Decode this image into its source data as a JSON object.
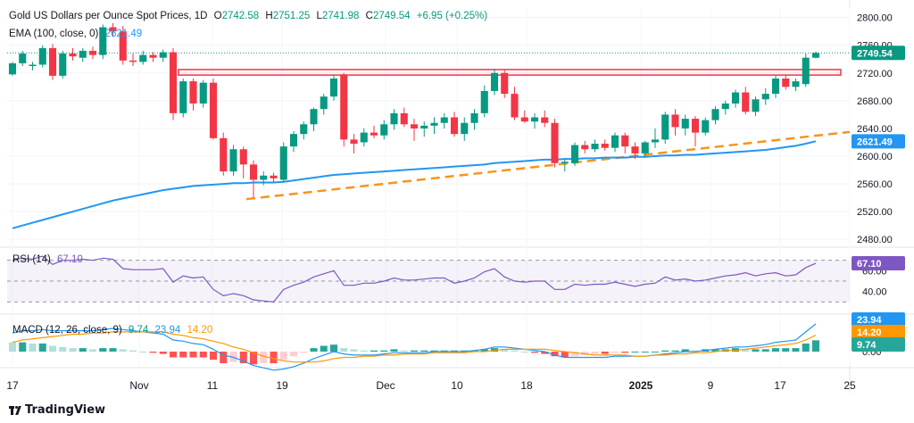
{
  "legend": {
    "title": "Gold US Dollars per Ounce Spot Prices, 1D",
    "open_label": "O",
    "open": "2742.58",
    "high_label": "H",
    "high": "2751.25",
    "low_label": "L",
    "low": "2741.98",
    "close_label": "C",
    "close": "2749.54",
    "change": "+6.95 (+0.25%)",
    "ema_label": "EMA (100, close, 0)",
    "ema_value": "2621.49",
    "rsi_label": "RSI (14)",
    "rsi_value": "67.10",
    "macd_label": "MACD (12, 26, close, 9)",
    "macd_hist": "9.74",
    "macd_line": "23.94",
    "macd_signal": "14.20"
  },
  "price_axis": {
    "ticks": [
      "2800.00",
      "2760.00",
      "2720.00",
      "2680.00",
      "2640.00",
      "2600.00",
      "2560.00",
      "2520.00",
      "2480.00"
    ],
    "last_price_badge": "2749.54",
    "ema_badge": "2621.49"
  },
  "rsi_axis": {
    "ticks": [
      "60.00",
      "40.00"
    ],
    "badge": "67.10"
  },
  "macd_axis": {
    "ticks": [
      "0.00"
    ],
    "badge_line": "23.94",
    "badge_signal": "14.20",
    "badge_hist": "9.74"
  },
  "time_axis": {
    "labels": [
      "17",
      "Nov",
      "11",
      "19",
      "Dec",
      "10",
      "18",
      "2025",
      "9",
      "17",
      "25"
    ]
  },
  "brand": {
    "name": "TradingView"
  },
  "colors": {
    "up": "#089981",
    "down": "#f23645",
    "ema": "#2196f3",
    "support": "#f7941d",
    "zone": "#f23645",
    "rsi": "#7e57c2",
    "macd": "#2196f3",
    "signal": "#ff9800"
  },
  "chart_data": {
    "type": "candlestick",
    "title": "Gold US Dollars per Ounce Spot Prices, 1D",
    "ylim": [
      2470,
      2815
    ],
    "candles": [
      [
        2718,
        2736,
        2716,
        2734
      ],
      [
        2734,
        2752,
        2730,
        2748
      ],
      [
        2730,
        2736,
        2724,
        2732
      ],
      [
        2732,
        2760,
        2728,
        2756
      ],
      [
        2756,
        2762,
        2710,
        2716
      ],
      [
        2716,
        2752,
        2712,
        2748
      ],
      [
        2748,
        2756,
        2738,
        2744
      ],
      [
        2742,
        2756,
        2736,
        2752
      ],
      [
        2752,
        2758,
        2740,
        2746
      ],
      [
        2746,
        2790,
        2740,
        2786
      ],
      [
        2786,
        2792,
        2772,
        2780
      ],
      [
        2780,
        2788,
        2732,
        2738
      ],
      [
        2738,
        2748,
        2730,
        2736
      ],
      [
        2736,
        2752,
        2732,
        2746
      ],
      [
        2746,
        2750,
        2736,
        2742
      ],
      [
        2742,
        2754,
        2736,
        2750
      ],
      [
        2750,
        2756,
        2652,
        2662
      ],
      [
        2662,
        2712,
        2656,
        2708
      ],
      [
        2708,
        2712,
        2666,
        2676
      ],
      [
        2676,
        2710,
        2670,
        2706
      ],
      [
        2706,
        2712,
        2624,
        2626
      ],
      [
        2626,
        2634,
        2572,
        2578
      ],
      [
        2578,
        2616,
        2572,
        2610
      ],
      [
        2610,
        2614,
        2568,
        2588
      ],
      [
        2588,
        2594,
        2540,
        2566
      ],
      [
        2566,
        2578,
        2558,
        2572
      ],
      [
        2572,
        2576,
        2562,
        2568
      ],
      [
        2566,
        2620,
        2562,
        2614
      ],
      [
        2614,
        2636,
        2606,
        2632
      ],
      [
        2632,
        2650,
        2624,
        2646
      ],
      [
        2646,
        2670,
        2636,
        2668
      ],
      [
        2668,
        2690,
        2660,
        2686
      ],
      [
        2686,
        2718,
        2680,
        2712
      ],
      [
        2718,
        2720,
        2614,
        2624
      ],
      [
        2624,
        2632,
        2604,
        2618
      ],
      [
        2620,
        2640,
        2614,
        2634
      ],
      [
        2634,
        2644,
        2626,
        2630
      ],
      [
        2630,
        2652,
        2624,
        2646
      ],
      [
        2646,
        2668,
        2638,
        2662
      ],
      [
        2662,
        2670,
        2642,
        2646
      ],
      [
        2646,
        2654,
        2622,
        2640
      ],
      [
        2640,
        2650,
        2628,
        2644
      ],
      [
        2644,
        2656,
        2632,
        2648
      ],
      [
        2648,
        2662,
        2640,
        2656
      ],
      [
        2656,
        2664,
        2628,
        2632
      ],
      [
        2632,
        2656,
        2622,
        2648
      ],
      [
        2648,
        2668,
        2638,
        2662
      ],
      [
        2662,
        2702,
        2656,
        2694
      ],
      [
        2694,
        2726,
        2688,
        2720
      ],
      [
        2720,
        2724,
        2684,
        2690
      ],
      [
        2690,
        2700,
        2652,
        2656
      ],
      [
        2656,
        2666,
        2648,
        2650
      ],
      [
        2650,
        2662,
        2640,
        2656
      ],
      [
        2656,
        2666,
        2642,
        2648
      ],
      [
        2648,
        2654,
        2584,
        2590
      ],
      [
        2590,
        2596,
        2578,
        2592
      ],
      [
        2590,
        2620,
        2586,
        2616
      ],
      [
        2616,
        2622,
        2604,
        2610
      ],
      [
        2610,
        2624,
        2606,
        2618
      ],
      [
        2618,
        2624,
        2608,
        2612
      ],
      [
        2612,
        2634,
        2606,
        2630
      ],
      [
        2630,
        2634,
        2604,
        2614
      ],
      [
        2614,
        2620,
        2596,
        2604
      ],
      [
        2604,
        2622,
        2598,
        2620
      ],
      [
        2620,
        2640,
        2612,
        2624
      ],
      [
        2624,
        2664,
        2618,
        2660
      ],
      [
        2660,
        2668,
        2630,
        2642
      ],
      [
        2640,
        2660,
        2630,
        2654
      ],
      [
        2654,
        2658,
        2614,
        2634
      ],
      [
        2634,
        2656,
        2630,
        2652
      ],
      [
        2652,
        2672,
        2646,
        2668
      ],
      [
        2668,
        2680,
        2660,
        2676
      ],
      [
        2676,
        2696,
        2670,
        2692
      ],
      [
        2692,
        2700,
        2660,
        2664
      ],
      [
        2664,
        2686,
        2658,
        2682
      ],
      [
        2682,
        2698,
        2674,
        2690
      ],
      [
        2690,
        2716,
        2684,
        2712
      ],
      [
        2712,
        2718,
        2696,
        2700
      ],
      [
        2700,
        2712,
        2694,
        2708
      ],
      [
        2704,
        2748,
        2700,
        2742
      ],
      [
        2742,
        2751,
        2741,
        2749
      ]
    ],
    "ema": [
      2496,
      2500,
      2504,
      2508,
      2512,
      2516,
      2520,
      2524,
      2528,
      2532,
      2536,
      2539,
      2542,
      2545,
      2548,
      2551,
      2553,
      2555,
      2557,
      2558,
      2559,
      2560,
      2561,
      2561,
      2562,
      2562,
      2562,
      2563,
      2565,
      2567,
      2569,
      2571,
      2573,
      2574,
      2575,
      2576,
      2577,
      2578,
      2579,
      2580,
      2581,
      2582,
      2583,
      2584,
      2585,
      2586,
      2587,
      2588,
      2590,
      2591,
      2592,
      2593,
      2594,
      2595,
      2595,
      2596,
      2596,
      2597,
      2597,
      2598,
      2598,
      2598,
      2599,
      2599,
      2600,
      2601,
      2601,
      2602,
      2602,
      2603,
      2604,
      2605,
      2606,
      2607,
      2608,
      2609,
      2611,
      2613,
      2615,
      2618,
      2621.49
    ],
    "resistance_zone": [
      2717,
      2725
    ],
    "support_line": {
      "from_price": 2538,
      "to_price": 2635
    },
    "rsi": [
      70,
      72,
      71,
      74,
      66,
      70,
      70,
      71,
      70,
      72,
      71,
      62,
      61,
      61,
      61,
      62,
      49,
      55,
      53,
      54,
      42,
      36,
      38,
      36,
      32,
      31,
      30,
      42,
      46,
      49,
      54,
      57,
      60,
      46,
      46,
      48,
      48,
      50,
      53,
      51,
      51,
      52,
      53,
      53,
      48,
      50,
      53,
      59,
      62,
      54,
      50,
      49,
      50,
      50,
      42,
      42,
      47,
      46,
      47,
      47,
      49,
      47,
      45,
      47,
      48,
      54,
      51,
      52,
      50,
      51,
      53,
      55,
      56,
      58,
      55,
      57,
      58,
      55,
      56,
      63,
      67.1
    ],
    "macd_line": [
      16,
      18,
      18,
      19,
      18,
      18,
      18,
      18,
      18,
      19,
      20,
      19,
      18,
      17,
      16,
      15,
      10,
      9,
      7,
      6,
      2,
      -3,
      -5,
      -8,
      -12,
      -14,
      -16,
      -15,
      -13,
      -10,
      -6,
      -3,
      0,
      -2,
      -3,
      -3,
      -3,
      -2,
      -1,
      -1,
      -1,
      -1,
      0,
      0,
      0,
      0,
      1,
      2,
      4,
      4,
      3,
      2,
      1,
      0,
      -3,
      -5,
      -5,
      -5,
      -5,
      -5,
      -4,
      -4,
      -4,
      -4,
      -3,
      -2,
      -1,
      0,
      0,
      1,
      2,
      3,
      4,
      4,
      5,
      6,
      8,
      9,
      10,
      17,
      23.94
    ],
    "macd_signal": [
      8,
      10,
      11,
      12,
      13,
      14,
      15,
      15,
      16,
      16,
      17,
      17,
      17,
      17,
      17,
      17,
      15,
      14,
      12,
      11,
      9,
      7,
      4,
      2,
      -1,
      -4,
      -6,
      -8,
      -9,
      -9,
      -9,
      -8,
      -6,
      -5,
      -5,
      -4,
      -4,
      -3,
      -3,
      -2,
      -2,
      -2,
      -1,
      -1,
      -1,
      -1,
      0,
      0,
      1,
      2,
      2,
      2,
      2,
      2,
      1,
      0,
      -1,
      -2,
      -3,
      -3,
      -3,
      -3,
      -4,
      -4,
      -3,
      -3,
      -2,
      -2,
      -1,
      -1,
      0,
      1,
      1,
      2,
      3,
      4,
      5,
      6,
      7,
      10,
      14.2
    ],
    "macd_hist": [
      8,
      8,
      7,
      7,
      5,
      4,
      3,
      3,
      2,
      3,
      3,
      2,
      1,
      0,
      -1,
      -2,
      -5,
      -5,
      -5,
      -5,
      -7,
      -10,
      -9,
      -10,
      -11,
      -10,
      -10,
      -7,
      -4,
      -1,
      3,
      5,
      6,
      3,
      2,
      1,
      1,
      1,
      2,
      1,
      1,
      1,
      1,
      1,
      1,
      1,
      1,
      2,
      3,
      2,
      1,
      0,
      -1,
      -2,
      -4,
      -5,
      -4,
      -3,
      -2,
      -2,
      -1,
      -1,
      0,
      0,
      0,
      1,
      1,
      2,
      1,
      2,
      2,
      2,
      3,
      2,
      2,
      2,
      3,
      3,
      3,
      7,
      9.74
    ]
  }
}
